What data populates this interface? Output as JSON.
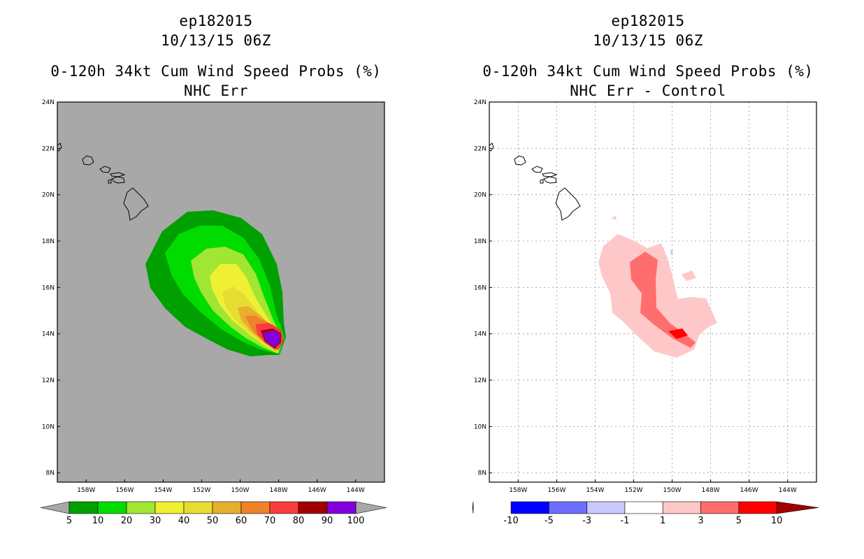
{
  "panels": [
    {
      "title_case": "ep182015",
      "title_time": "10/13/15 06Z",
      "title_var": "0-120h 34kt Cum Wind Speed Probs (%)",
      "title_run": "NHC Err"
    },
    {
      "title_case": "ep182015",
      "title_time": "10/13/15 06Z",
      "title_var": "0-120h 34kt Cum Wind Speed Probs (%)",
      "title_run": "NHC Err - Control"
    }
  ],
  "colors": {
    "land_bg": "#a8a8a8",
    "prob_levels": [
      "#00a000",
      "#00dc00",
      "#a0e632",
      "#f0f032",
      "#e6dc32",
      "#e6af2d",
      "#f08228",
      "#fa3c3c",
      "#a00000",
      "#8200dc"
    ],
    "diff_levels": [
      "#0000a0",
      "#0000ff",
      "#6e6eff",
      "#c8c8ff",
      "#ffffff",
      "#ffc8c8",
      "#ff6e6e",
      "#ff0000",
      "#a00000"
    ]
  },
  "chart_data": [
    {
      "type": "contour-map",
      "panel": "left",
      "title": "0-120h 34kt Cum Wind Speed Probs (%)",
      "subtitle": "NHC Err",
      "lon_range": [
        -159.5,
        -142.5
      ],
      "lat_range": [
        7.6,
        24
      ],
      "lon_ticks": [
        "158W",
        "156W",
        "154W",
        "152W",
        "150W",
        "148W",
        "146W",
        "144W"
      ],
      "lat_ticks": [
        "8N",
        "10N",
        "12N",
        "14N",
        "16N",
        "18N",
        "20N",
        "22N",
        "24N"
      ],
      "grid": false,
      "colorbar": {
        "labels": [
          "5",
          "10",
          "20",
          "30",
          "40",
          "50",
          "60",
          "70",
          "80",
          "90",
          "100"
        ],
        "arrows": "both"
      },
      "max_probability_center": {
        "lon": -148.4,
        "lat": 13.8
      }
    },
    {
      "type": "contour-map",
      "panel": "right",
      "title": "0-120h 34kt Cum Wind Speed Probs (%)",
      "subtitle": "NHC Err - Control",
      "lon_range": [
        -159.5,
        -142.5
      ],
      "lat_range": [
        7.6,
        24
      ],
      "lon_ticks": [
        "158W",
        "156W",
        "154W",
        "152W",
        "150W",
        "148W",
        "146W",
        "144W"
      ],
      "lat_ticks": [
        "8N",
        "10N",
        "12N",
        "14N",
        "16N",
        "18N",
        "20N",
        "22N",
        "24N"
      ],
      "grid": true,
      "colorbar": {
        "labels": [
          "-10",
          "-5",
          "-3",
          "-1",
          "1",
          "3",
          "5",
          "10"
        ],
        "arrows": "both"
      },
      "max_difference_center": {
        "lon": -149.6,
        "lat": 14.0
      }
    }
  ]
}
